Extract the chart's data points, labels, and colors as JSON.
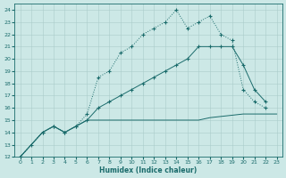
{
  "xlabel": "Humidex (Indice chaleur)",
  "xlim": [
    -0.5,
    23.5
  ],
  "ylim": [
    12,
    24.5
  ],
  "xticks": [
    0,
    1,
    2,
    3,
    4,
    5,
    6,
    7,
    8,
    9,
    10,
    11,
    12,
    13,
    14,
    15,
    16,
    17,
    18,
    19,
    20,
    21,
    22,
    23
  ],
  "yticks": [
    12,
    13,
    14,
    15,
    16,
    17,
    18,
    19,
    20,
    21,
    22,
    23,
    24
  ],
  "bg_color": "#cce8e6",
  "grid_color": "#aaccca",
  "line_color": "#1a6b6b",
  "line1_x": [
    0,
    1,
    2,
    3,
    4,
    5,
    6,
    7,
    8,
    9,
    10,
    11,
    12,
    13,
    14,
    15,
    16,
    17,
    18,
    19,
    20,
    21,
    22
  ],
  "line1_y": [
    12,
    13,
    14,
    14.5,
    14,
    14.5,
    15.5,
    18.5,
    19,
    20.5,
    21,
    22,
    22.5,
    23,
    24,
    22.5,
    23,
    23.5,
    22,
    21.5,
    17.5,
    16.5,
    16
  ],
  "line2_x": [
    0,
    2,
    3,
    4,
    5,
    6,
    7,
    8,
    9,
    10,
    11,
    12,
    13,
    14,
    15,
    16,
    17,
    18,
    19,
    20,
    21,
    22
  ],
  "line2_y": [
    12,
    14,
    14.5,
    14,
    14.5,
    15,
    16,
    16.5,
    17,
    17.5,
    18,
    18.5,
    19,
    19.5,
    20,
    21,
    21,
    21,
    21,
    19.5,
    17.5,
    16.5
  ],
  "line3_x": [
    0,
    2,
    3,
    4,
    5,
    6,
    7,
    8,
    9,
    10,
    11,
    12,
    13,
    14,
    15,
    16,
    17,
    18,
    19,
    20,
    21,
    22,
    23
  ],
  "line3_y": [
    12,
    14,
    14.5,
    14,
    14.5,
    15,
    15,
    15,
    15,
    15,
    15,
    15,
    15,
    15,
    15,
    15,
    15.2,
    15.3,
    15.4,
    15.5,
    15.5,
    15.5,
    15.5
  ]
}
